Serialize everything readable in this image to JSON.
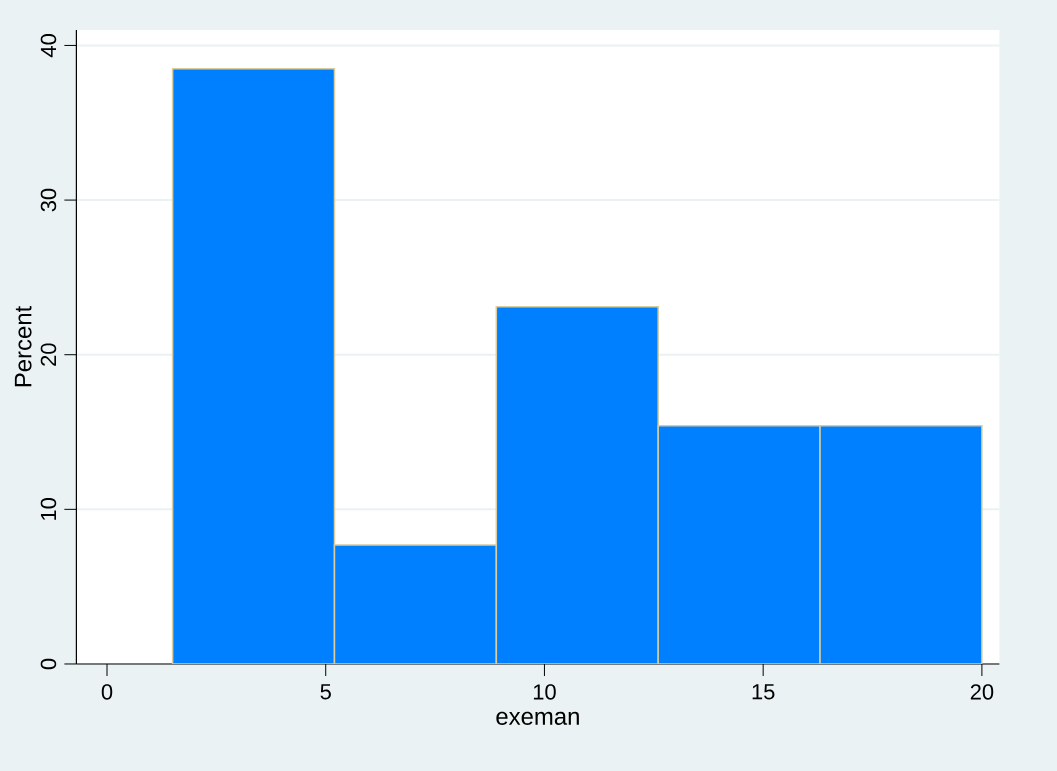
{
  "chart_data": {
    "type": "histogram",
    "xlabel": "exeman",
    "ylabel": "Percent",
    "bins": [
      1.5,
      5.2,
      8.9,
      12.6,
      16.3,
      20
    ],
    "values": [
      38.5,
      7.7,
      23.1,
      15.4,
      15.4
    ],
    "color": "#0080ff",
    "xlim": [
      -0.7,
      20.4
    ],
    "ylim": [
      0,
      41
    ],
    "xticks": [
      0,
      5,
      10,
      15,
      20
    ],
    "yticks": [
      0,
      10,
      20,
      30,
      40
    ],
    "grid": "y"
  }
}
